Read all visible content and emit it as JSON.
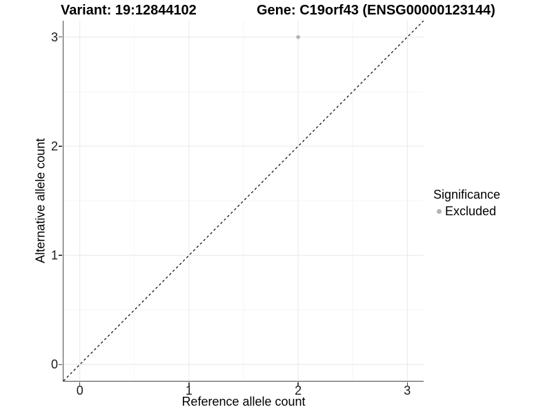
{
  "chart_data": {
    "type": "scatter",
    "title_left": "Variant: 19:12844102",
    "title_right": "Gene: C19orf43 (ENSG00000123144)",
    "xlabel": "Reference allele count",
    "ylabel": "Alternative allele count",
    "xlim": [
      -0.15,
      3.15
    ],
    "ylim": [
      -0.15,
      3.15
    ],
    "xticks": [
      0,
      1,
      2,
      3
    ],
    "yticks": [
      0,
      1,
      2,
      3
    ],
    "xticks_minor": [
      0.5,
      1.5,
      2.5
    ],
    "yticks_minor": [
      0.5,
      1.5,
      2.5
    ],
    "grid": "major+minor",
    "points": [
      {
        "x": 2,
        "y": 3,
        "series": "Excluded"
      }
    ],
    "reference_line": {
      "kind": "identity",
      "from": [
        -0.15,
        -0.15
      ],
      "to": [
        3.15,
        3.15
      ],
      "style": "dashed",
      "color": "#000000"
    },
    "legend": {
      "title": "Significance",
      "position": "right",
      "entries": [
        {
          "label": "Excluded",
          "marker": "circle",
          "color": "#b3b3b3"
        }
      ]
    },
    "colors": {
      "background": "#ffffff",
      "panel_background": "#ffffff",
      "grid_major": "#e7e7e7",
      "grid_minor": "#f4f4f4",
      "axis_line": "#464646",
      "tick_text": "#1a1a1a",
      "point": "#b3b3b3"
    }
  }
}
